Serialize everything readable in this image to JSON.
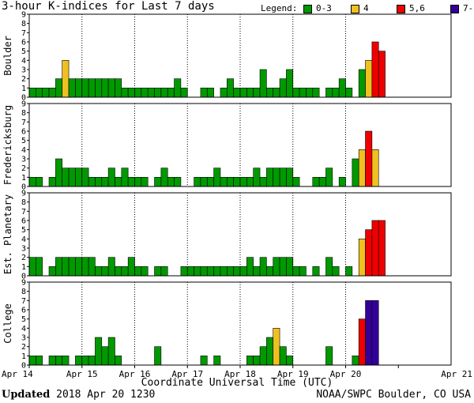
{
  "header": {
    "title": "3-hour K-indices for Last 7 days"
  },
  "legend": {
    "title": "Legend:",
    "items": [
      {
        "label": "0-3",
        "color": "#009900"
      },
      {
        "label": "4",
        "color": "#f0c020"
      },
      {
        "label": "5,6",
        "color": "#ee0000"
      },
      {
        "label": "7-9",
        "color": "#330099"
      }
    ]
  },
  "chart_data": {
    "type": "bar",
    "ylim": [
      0,
      9
    ],
    "y_ticks": [
      "0",
      "1",
      "2",
      "3",
      "4",
      "5",
      "6",
      "7",
      "8",
      "9"
    ],
    "x_tick_labels": [
      "Apr 14",
      "Apr 15",
      "Apr 16",
      "Apr 17",
      "Apr 18",
      "Apr 19",
      "Apr 20",
      "Apr 21"
    ],
    "xlabel": "Coordinate Universal Time (UTC)",
    "bars_per_day": 8,
    "color_scale": {
      "0-3": "#009900",
      "4": "#f0c020",
      "5,6": "#ee0000",
      "7-9": "#330099"
    },
    "panels": [
      {
        "name": "Boulder",
        "values": [
          1,
          1,
          1,
          1,
          2,
          4,
          2,
          2,
          2,
          2,
          2,
          2,
          2,
          2,
          1,
          1,
          1,
          1,
          1,
          1,
          1,
          1,
          2,
          1,
          0,
          0,
          1,
          1,
          0,
          1,
          2,
          1,
          1,
          1,
          1,
          3,
          1,
          1,
          2,
          3,
          1,
          1,
          1,
          1,
          0,
          1,
          1,
          2,
          1,
          0,
          3,
          4,
          6,
          5,
          0,
          0,
          0,
          0,
          0,
          0,
          0,
          0,
          0,
          0
        ]
      },
      {
        "name": "Fredericksburg",
        "values": [
          1,
          1,
          0,
          1,
          3,
          2,
          2,
          2,
          2,
          1,
          1,
          1,
          2,
          1,
          2,
          1,
          1,
          1,
          0,
          1,
          2,
          1,
          1,
          0,
          0,
          1,
          1,
          1,
          2,
          1,
          1,
          1,
          1,
          1,
          2,
          1,
          2,
          2,
          2,
          2,
          1,
          0,
          0,
          1,
          1,
          2,
          0,
          1,
          0,
          3,
          4,
          6,
          4,
          0,
          0,
          0,
          0,
          0,
          0,
          0,
          0,
          0,
          0,
          0
        ]
      },
      {
        "name": "Est. Planetary",
        "values": [
          2,
          2,
          0,
          1,
          2,
          2,
          2,
          2,
          2,
          2,
          1,
          1,
          2,
          1,
          1,
          2,
          1,
          1,
          0,
          1,
          1,
          0,
          0,
          1,
          1,
          1,
          1,
          1,
          1,
          1,
          1,
          1,
          1,
          2,
          1,
          2,
          1,
          2,
          2,
          2,
          1,
          1,
          0,
          1,
          0,
          2,
          1,
          0,
          1,
          0,
          4,
          5,
          6,
          6,
          0,
          0,
          0,
          0,
          0,
          0,
          0,
          0,
          0,
          0
        ]
      },
      {
        "name": "College",
        "values": [
          1,
          1,
          0,
          1,
          1,
          1,
          0,
          1,
          1,
          1,
          3,
          2,
          3,
          1,
          0,
          0,
          0,
          0,
          0,
          2,
          0,
          0,
          0,
          0,
          0,
          0,
          1,
          0,
          1,
          0,
          0,
          0,
          0,
          1,
          1,
          2,
          3,
          4,
          2,
          1,
          0,
          0,
          0,
          0,
          0,
          2,
          0,
          0,
          0,
          1,
          5,
          7,
          7,
          0,
          0,
          0,
          0,
          0,
          0,
          0,
          0,
          0,
          0,
          0
        ]
      }
    ]
  },
  "footer": {
    "updated_label": "Updated",
    "updated_value": "2018 Apr 20 1230",
    "credit": "NOAA/SWPC Boulder, CO USA"
  }
}
